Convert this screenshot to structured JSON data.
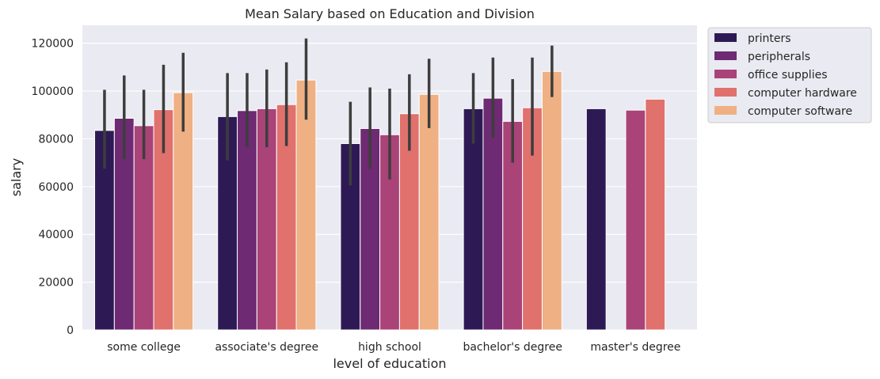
{
  "chart_data": {
    "type": "bar",
    "title": "Mean Salary based on Education and Division",
    "xlabel": "level of education",
    "ylabel": "salary",
    "ylim": [
      0,
      127500
    ],
    "yticks": [
      0,
      20000,
      40000,
      60000,
      80000,
      100000,
      120000
    ],
    "grid": true,
    "legend_position": "outside-top-right",
    "categories": [
      "some college",
      "associate's degree",
      "high school",
      "bachelor's degree",
      "master's degree"
    ],
    "series": [
      {
        "name": "printers",
        "color": "#2d1a55",
        "values": [
          83500,
          89300,
          78000,
          92600,
          92600
        ],
        "ci_low": [
          67500,
          71000,
          60500,
          78000,
          null
        ],
        "ci_high": [
          100500,
          107500,
          95500,
          107500,
          null
        ]
      },
      {
        "name": "peripherals",
        "color": "#6e2a72",
        "values": [
          88600,
          91800,
          84300,
          97000,
          null
        ],
        "ci_low": [
          71500,
          76500,
          67500,
          80500,
          null
        ],
        "ci_high": [
          106500,
          107500,
          101500,
          114000,
          null
        ]
      },
      {
        "name": "office supplies",
        "color": "#a94378",
        "values": [
          85500,
          92600,
          81700,
          87300,
          92000
        ],
        "ci_low": [
          71500,
          76500,
          63000,
          70000,
          null
        ],
        "ci_high": [
          100500,
          109000,
          101000,
          105000,
          null
        ]
      },
      {
        "name": "computer hardware",
        "color": "#e0716d",
        "values": [
          92200,
          94300,
          90500,
          93000,
          96600
        ],
        "ci_low": [
          74000,
          77000,
          75000,
          73000,
          null
        ],
        "ci_high": [
          111000,
          112000,
          107000,
          114000,
          null
        ]
      },
      {
        "name": "computer software",
        "color": "#efb083",
        "values": [
          99300,
          104600,
          98600,
          108200,
          null
        ],
        "ci_low": [
          83000,
          88000,
          84500,
          97500,
          null
        ],
        "ci_high": [
          116000,
          122000,
          113500,
          119000,
          null
        ]
      }
    ]
  }
}
